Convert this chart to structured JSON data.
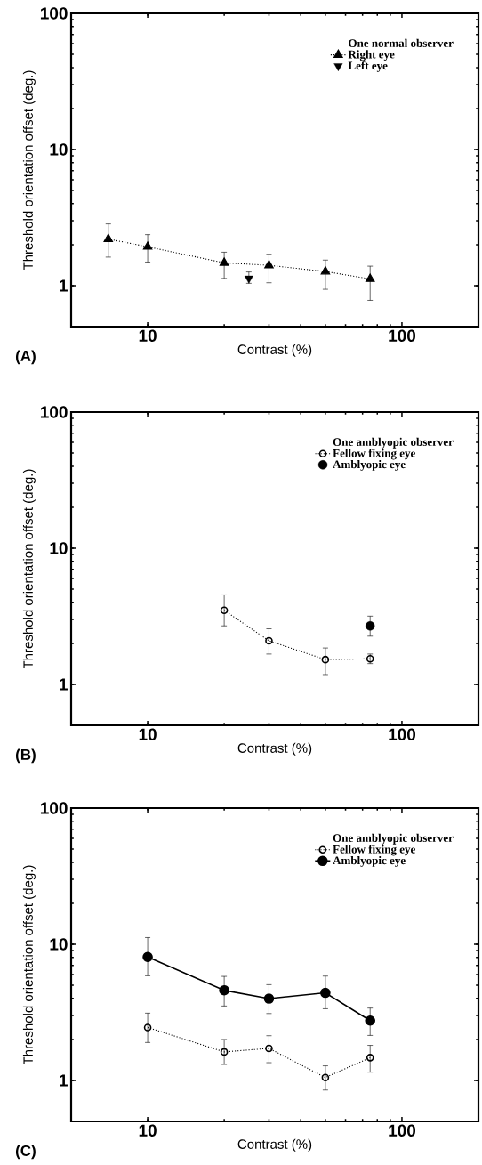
{
  "chart_data": [
    {
      "type": "line",
      "xlabel": "Contrast (%)",
      "ylabel": "Threshold orientation offset (deg.)",
      "legend_title": "One normal observer",
      "legend": "top right",
      "log": "xy",
      "xlim": [
        5,
        200
      ],
      "ylim": [
        0.5,
        100
      ],
      "xticks": [
        10,
        100
      ],
      "yticks": [
        1,
        10,
        100
      ],
      "annotations": [
        "(A)"
      ],
      "series": [
        {
          "name": "Right eye",
          "color": "#000000",
          "marker": "triangle",
          "line_style": "dotted",
          "x": [
            7,
            10,
            20,
            30,
            50,
            75
          ],
          "values": [
            2.2,
            1.93,
            1.47,
            1.41,
            1.27,
            1.12
          ],
          "errors": [
            [
              1.62,
              2.84
            ],
            [
              1.49,
              2.37
            ],
            [
              1.13,
              1.76
            ],
            [
              1.05,
              1.7
            ],
            [
              0.94,
              1.54
            ],
            [
              0.78,
              1.39
            ]
          ]
        },
        {
          "name": "Left eye",
          "type": "scatter",
          "color": "#000000",
          "marker": "triangle_down",
          "x": [
            25
          ],
          "values": [
            1.13
          ],
          "errors": [
            [
              1.04,
              1.26
            ]
          ]
        }
      ]
    },
    {
      "type": "line",
      "xlabel": "Contrast (%)",
      "ylabel": "Threshold orientation offset (deg.)",
      "legend_title": "One amblyopic observer",
      "legend": "top right",
      "log": "xy",
      "xlim": [
        5,
        200
      ],
      "ylim": [
        0.5,
        100
      ],
      "xticks": [
        10,
        100
      ],
      "yticks": [
        1,
        10,
        100
      ],
      "annotations": [
        "(B)"
      ],
      "series": [
        {
          "name": "Fellow fixing eye",
          "color": "#000000",
          "marker": "circle_open",
          "line_style": "dotted",
          "x": [
            20,
            30,
            50,
            75
          ],
          "values": [
            3.5,
            2.09,
            1.52,
            1.54
          ],
          "errors": [
            [
              2.69,
              4.54
            ],
            [
              1.67,
              2.56
            ],
            [
              1.18,
              1.85
            ],
            [
              1.42,
              1.67
            ]
          ]
        },
        {
          "name": "Amblyopic eye",
          "type": "scatter",
          "color": "#000000",
          "marker": "circle",
          "x": [
            75
          ],
          "values": [
            2.69
          ],
          "errors": [
            [
              2.26,
              3.17
            ]
          ]
        }
      ]
    },
    {
      "type": "line",
      "xlabel": "Contrast (%)",
      "ylabel": "Threshold orientation offset (deg.)",
      "legend_title": "One amblyopic observer",
      "legend": "top right",
      "log": "xy",
      "xlim": [
        5,
        200
      ],
      "ylim": [
        0.5,
        100
      ],
      "xticks": [
        10,
        100
      ],
      "yticks": [
        1,
        10,
        100
      ],
      "annotations": [
        "(C)"
      ],
      "series": [
        {
          "name": "Fellow fixing eye",
          "color": "#000000",
          "marker": "circle_open",
          "line_style": "dotted",
          "x": [
            10,
            20,
            30,
            50,
            75
          ],
          "values": [
            2.45,
            1.62,
            1.72,
            1.05,
            1.47
          ],
          "errors": [
            [
              1.9,
              3.12
            ],
            [
              1.31,
              2.0
            ],
            [
              1.35,
              2.13
            ],
            [
              0.85,
              1.28
            ],
            [
              1.15,
              1.81
            ]
          ]
        },
        {
          "name": "Amblyopic eye",
          "color": "#000000",
          "marker": "circle",
          "line_style": "solid",
          "x": [
            10,
            20,
            30,
            50,
            75
          ],
          "values": [
            8.07,
            4.59,
            3.99,
            4.4,
            2.75
          ],
          "errors": [
            [
              5.87,
              11.2
            ],
            [
              3.52,
              5.81
            ],
            [
              3.1,
              5.05
            ],
            [
              3.36,
              5.84
            ],
            [
              2.14,
              3.4
            ]
          ]
        }
      ]
    }
  ]
}
